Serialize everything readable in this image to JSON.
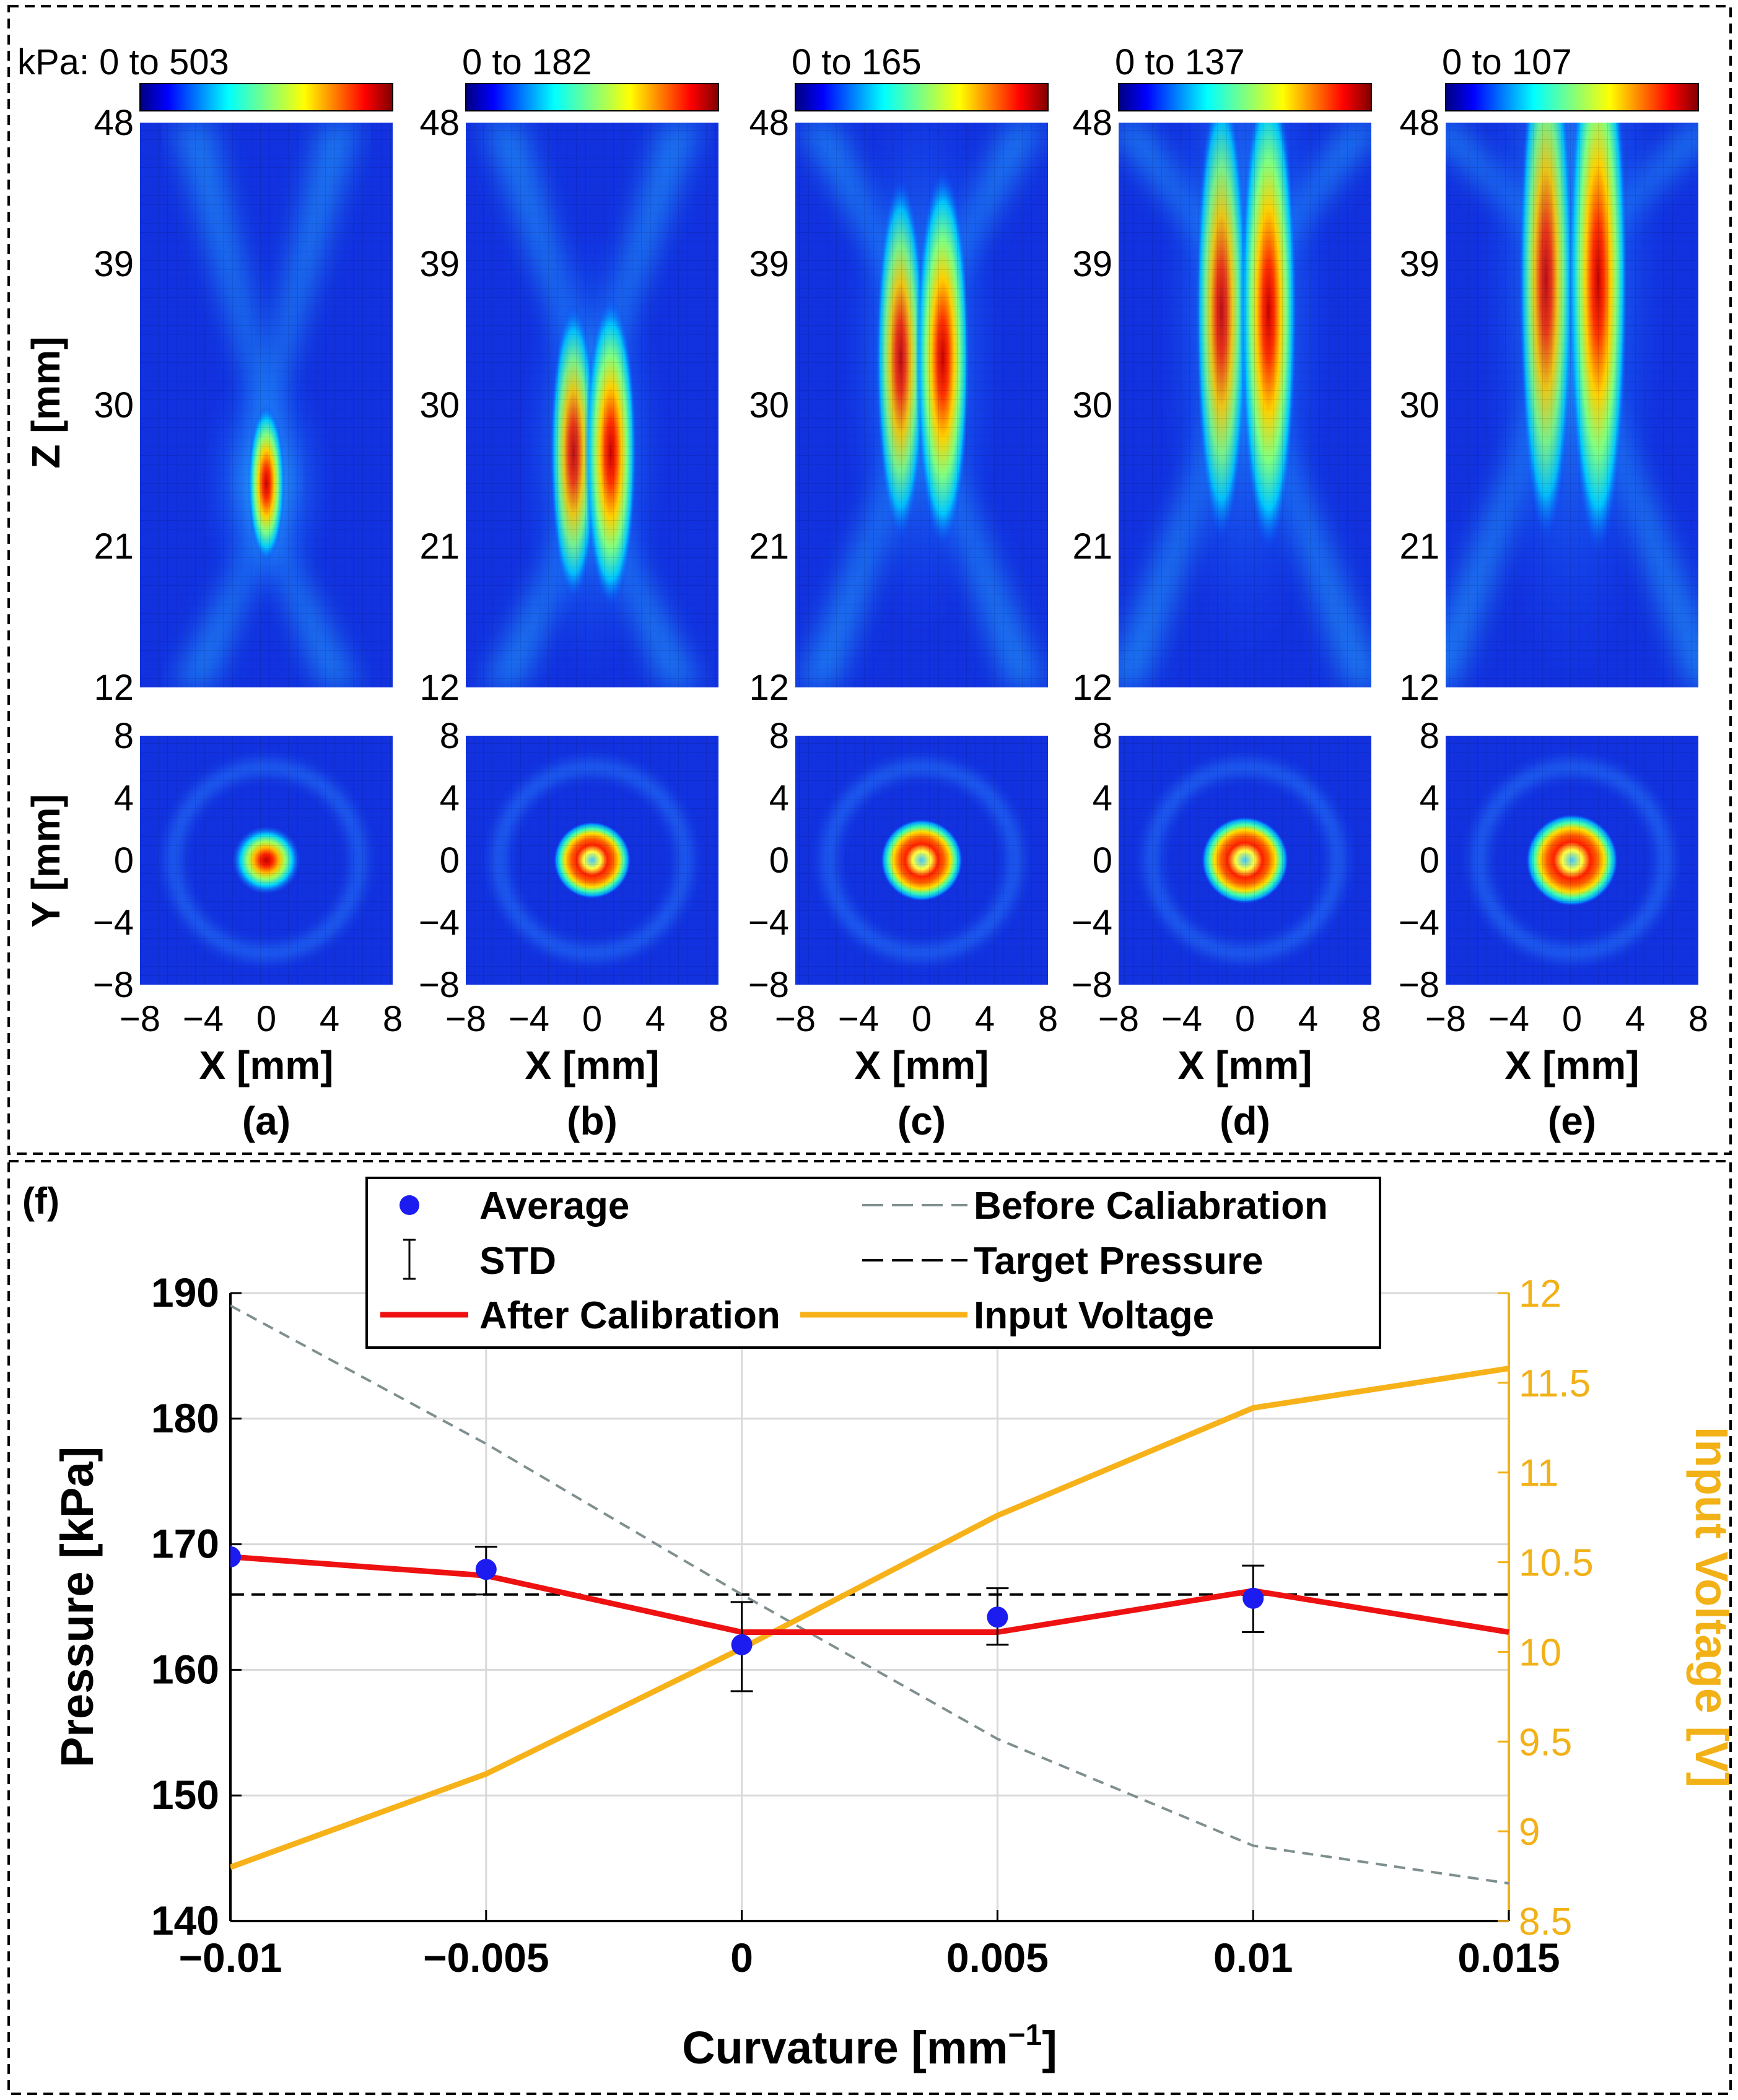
{
  "panel_top": {
    "colorbar_prefix": "kPa: ",
    "z_axis_label": "Z [mm]",
    "y_axis_label": "Y [mm]",
    "x_axis_label": "X [mm]",
    "z_ticks": [
      "48",
      "39",
      "30",
      "21",
      "12"
    ],
    "y_ticks": [
      "8",
      "4",
      "0",
      "−4",
      "−8"
    ],
    "x_ticks": [
      "−8",
      "−4",
      "0",
      "4",
      "8"
    ],
    "colormap": "jet",
    "panels": [
      {
        "letter": "(a)",
        "range": "0 to 503",
        "max_kpa": 503,
        "focus_type": "single",
        "focus_center_mm": 25,
        "focus_halfwidth_mm": 5,
        "ring": false
      },
      {
        "letter": "(b)",
        "range": "0 to 182",
        "max_kpa": 182,
        "focus_type": "split",
        "focus_center_mm": 27,
        "focus_halfwidth_mm": 9,
        "ring": true
      },
      {
        "letter": "(c)",
        "range": "0 to 165",
        "max_kpa": 165,
        "focus_type": "split",
        "focus_center_mm": 33,
        "focus_halfwidth_mm": 11,
        "ring": true
      },
      {
        "letter": "(d)",
        "range": "0 to 137",
        "max_kpa": 137,
        "focus_type": "split",
        "focus_center_mm": 36,
        "focus_halfwidth_mm": 14,
        "ring": true
      },
      {
        "letter": "(e)",
        "range": "0 to 107",
        "max_kpa": 107,
        "focus_type": "split",
        "focus_center_mm": 38,
        "focus_halfwidth_mm": 16,
        "ring": true
      }
    ]
  },
  "chart_data": {
    "type": "line",
    "panel_label": "(f)",
    "xlabel_main": "Curvature [mm",
    "xlabel_sup": "−1",
    "xlabel_end": "]",
    "ylabel": "Pressure [kPa]",
    "y2label": "Input Voltage [V]",
    "x": [
      -0.01,
      -0.005,
      0,
      0.005,
      0.01,
      0.015
    ],
    "xticks": [
      -0.01,
      -0.005,
      0,
      0.005,
      0.01,
      0.015
    ],
    "xtick_labels": [
      "−0.01",
      "−0.005",
      "0",
      "0.005",
      "0.01",
      "0.015"
    ],
    "xlim": [
      -0.01,
      0.015
    ],
    "ylim": [
      140,
      190
    ],
    "yticks": [
      140,
      150,
      160,
      170,
      180,
      190
    ],
    "ytick_labels": [
      "140",
      "150",
      "160",
      "170",
      "180",
      "190"
    ],
    "y2lim": [
      8.5,
      12
    ],
    "y2ticks": [
      8.5,
      9,
      9.5,
      10,
      10.5,
      11,
      11.5,
      12
    ],
    "y2tick_labels": [
      "8.5",
      "9",
      "9.5",
      "10",
      "10.5",
      "11",
      "11.5",
      "12"
    ],
    "grid": true,
    "legend_position": "top",
    "legend": [
      {
        "label": "Average",
        "style": "marker"
      },
      {
        "label": "Before Caliabration",
        "style": "dashed-gray"
      },
      {
        "label": "STD",
        "style": "errorbar"
      },
      {
        "label": "Target Pressure",
        "style": "dashed-black"
      },
      {
        "label": "After Calibration",
        "style": "solid-red"
      },
      {
        "label": "Input Voltage",
        "style": "solid-orange"
      }
    ],
    "series": {
      "average": {
        "name": "Average",
        "values": [
          169,
          168,
          162,
          164.2,
          165.7,
          null
        ]
      },
      "std": {
        "name": "STD",
        "low": [
          169,
          166,
          158.3,
          162,
          163,
          null
        ],
        "high": [
          169,
          169.8,
          165.4,
          166.5,
          168.3,
          null
        ]
      },
      "before": {
        "name": "Before Caliabration",
        "values": [
          189,
          178,
          166,
          154.5,
          146,
          143
        ]
      },
      "target": {
        "name": "Target Pressure",
        "value": 166
      },
      "after": {
        "name": "After Calibration",
        "values": [
          169,
          167.5,
          163,
          163,
          166.3,
          163
        ]
      },
      "voltage": {
        "name": "Input Voltage",
        "axis": "right",
        "values": [
          8.8,
          9.32,
          10.02,
          10.76,
          11.36,
          11.58
        ]
      }
    },
    "colors": {
      "average": "#1c1cf0",
      "after": "#ee1111",
      "voltage": "#f7b21a",
      "before": "#7f8f8f",
      "target": "#000000",
      "voltage_axis": "#f2b117"
    }
  }
}
